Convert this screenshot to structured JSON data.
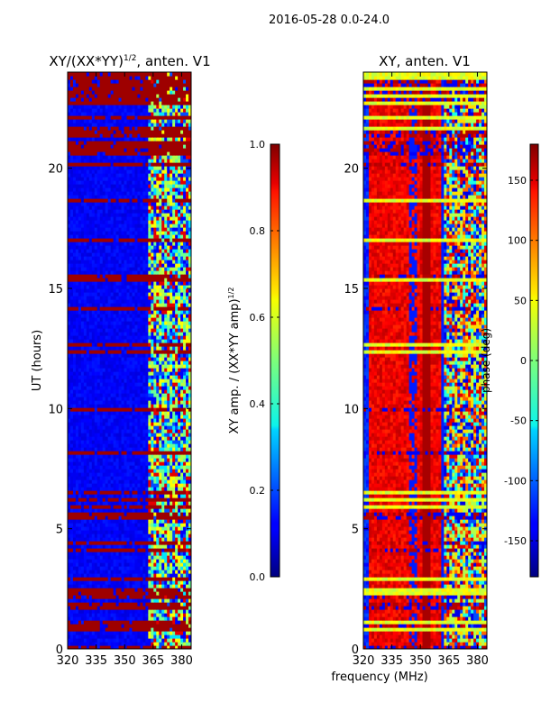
{
  "suptitle": "2016-05-28 0.0-24.0",
  "chart_data": [
    {
      "type": "heatmap",
      "title_main": "XY/(XX*YY)",
      "title_sup": "1/2",
      "title_tail": ", anten. V1",
      "ylabel": "UT (hours)",
      "xlabel": "",
      "xlim": [
        320,
        385
      ],
      "ylim": [
        0,
        24
      ],
      "xticks": [
        320,
        335,
        350,
        365,
        380
      ],
      "yticks": [
        0,
        5,
        10,
        15,
        20
      ],
      "colorbar": {
        "label_main": "XY amp. / (XX*YY amp)",
        "label_sup": "1/2",
        "range": [
          0.0,
          1.0
        ],
        "ticks": [
          "0.0",
          "0.2",
          "0.4",
          "0.6",
          "0.8",
          "1.0"
        ],
        "colormap": "jet"
      },
      "description": "Low amplitude (~0.1) across 320-361 MHz, high-variance band 361-383 MHz, saturated horizontal stripes at many UT times"
    },
    {
      "type": "heatmap",
      "title": "XY, anten. V1",
      "ylabel": "",
      "xlabel": "frequency (MHz)",
      "xlim": [
        320,
        385
      ],
      "ylim": [
        0,
        24
      ],
      "xticks": [
        320,
        335,
        350,
        365,
        380
      ],
      "yticks": [
        0,
        5,
        10,
        15,
        20
      ],
      "colorbar": {
        "label": "phase (deg)",
        "range": [
          -180,
          180
        ],
        "ticks": [
          "-150",
          "-100",
          "-50",
          "0",
          "50",
          "100",
          "150"
        ],
        "colormap": "jet"
      },
      "description": "Phase ~120-160 deg in 320-360 MHz, mixed phases in 361-383 MHz band, bright horizontal lines at gap times"
    }
  ],
  "colors": {
    "background": "#ffffff",
    "jet_low": "#00007f",
    "jet_high": "#7f0000"
  }
}
